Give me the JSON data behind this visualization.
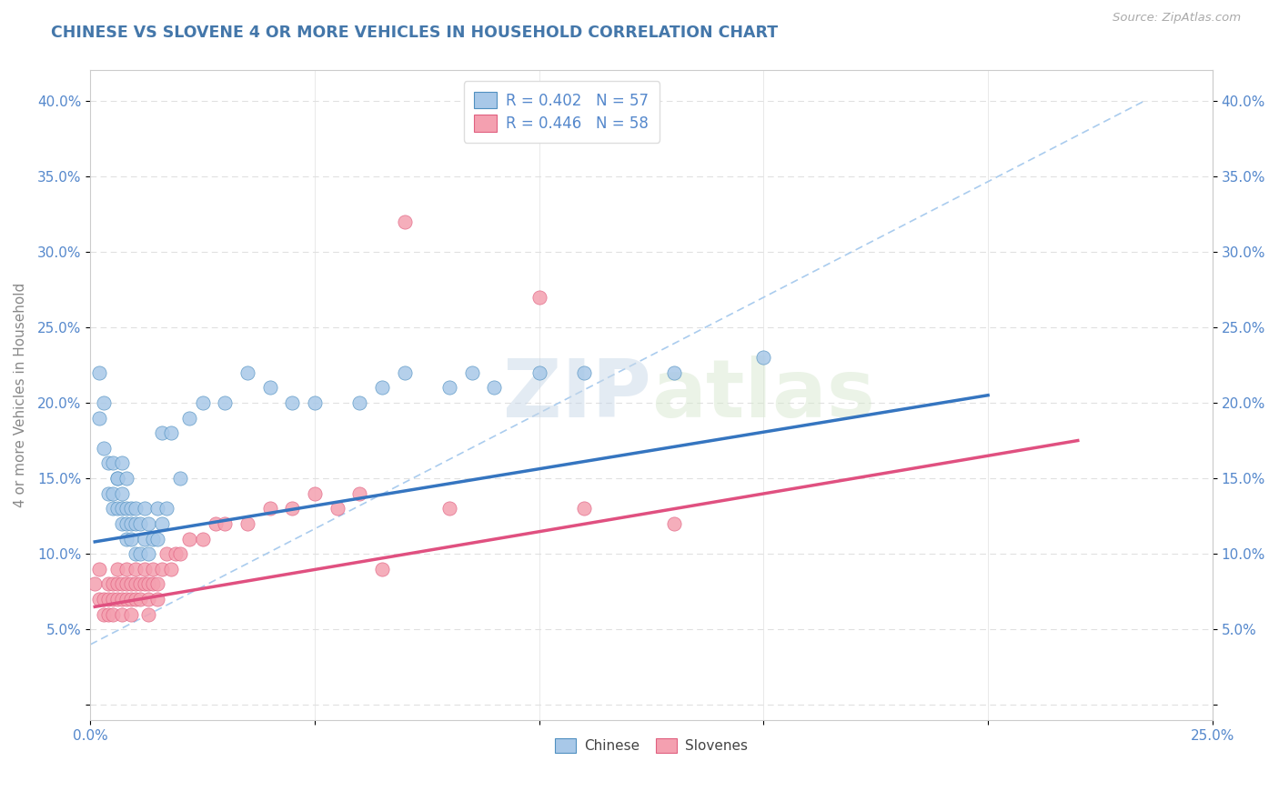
{
  "title": "CHINESE VS SLOVENE 4 OR MORE VEHICLES IN HOUSEHOLD CORRELATION CHART",
  "source_text": "Source: ZipAtlas.com",
  "ylabel": "4 or more Vehicles in Household",
  "xlim": [
    0.0,
    0.25
  ],
  "ylim": [
    -0.01,
    0.42
  ],
  "ytick_vals": [
    0.0,
    0.05,
    0.1,
    0.15,
    0.2,
    0.25,
    0.3,
    0.35,
    0.4
  ],
  "ytick_labels": [
    "",
    "5.0%",
    "10.0%",
    "15.0%",
    "20.0%",
    "25.0%",
    "30.0%",
    "35.0%",
    "40.0%"
  ],
  "xtick_vals": [
    0.0,
    0.05,
    0.1,
    0.15,
    0.2,
    0.25
  ],
  "xtick_labels": [
    "0.0%",
    "",
    "",
    "",
    "",
    "25.0%"
  ],
  "chinese_R": 0.402,
  "chinese_N": 57,
  "slovene_R": 0.446,
  "slovene_N": 58,
  "chinese_color": "#a8c8e8",
  "slovene_color": "#f4a0b0",
  "chinese_edge_color": "#5090c0",
  "slovene_edge_color": "#e06080",
  "chinese_line_color": "#3575c0",
  "slovene_line_color": "#e05080",
  "dashed_line_color": "#aaccee",
  "background_color": "#ffffff",
  "grid_color": "#e0e0e0",
  "title_color": "#4477aa",
  "tick_color": "#5588cc",
  "ylabel_color": "#888888",
  "source_color": "#aaaaaa",
  "watermark_color": "#ddeeff",
  "chinese_scatter": [
    [
      0.002,
      0.22
    ],
    [
      0.002,
      0.19
    ],
    [
      0.003,
      0.2
    ],
    [
      0.003,
      0.17
    ],
    [
      0.004,
      0.16
    ],
    [
      0.004,
      0.14
    ],
    [
      0.005,
      0.16
    ],
    [
      0.005,
      0.14
    ],
    [
      0.005,
      0.13
    ],
    [
      0.006,
      0.15
    ],
    [
      0.006,
      0.13
    ],
    [
      0.006,
      0.15
    ],
    [
      0.007,
      0.14
    ],
    [
      0.007,
      0.12
    ],
    [
      0.007,
      0.16
    ],
    [
      0.007,
      0.13
    ],
    [
      0.008,
      0.13
    ],
    [
      0.008,
      0.15
    ],
    [
      0.008,
      0.12
    ],
    [
      0.008,
      0.11
    ],
    [
      0.009,
      0.13
    ],
    [
      0.009,
      0.11
    ],
    [
      0.009,
      0.12
    ],
    [
      0.01,
      0.12
    ],
    [
      0.01,
      0.1
    ],
    [
      0.01,
      0.13
    ],
    [
      0.011,
      0.12
    ],
    [
      0.011,
      0.1
    ],
    [
      0.012,
      0.11
    ],
    [
      0.012,
      0.13
    ],
    [
      0.013,
      0.12
    ],
    [
      0.013,
      0.1
    ],
    [
      0.014,
      0.11
    ],
    [
      0.015,
      0.11
    ],
    [
      0.015,
      0.13
    ],
    [
      0.016,
      0.12
    ],
    [
      0.016,
      0.18
    ],
    [
      0.017,
      0.13
    ],
    [
      0.018,
      0.18
    ],
    [
      0.02,
      0.15
    ],
    [
      0.022,
      0.19
    ],
    [
      0.025,
      0.2
    ],
    [
      0.03,
      0.2
    ],
    [
      0.035,
      0.22
    ],
    [
      0.04,
      0.21
    ],
    [
      0.045,
      0.2
    ],
    [
      0.05,
      0.2
    ],
    [
      0.06,
      0.2
    ],
    [
      0.065,
      0.21
    ],
    [
      0.07,
      0.22
    ],
    [
      0.08,
      0.21
    ],
    [
      0.085,
      0.22
    ],
    [
      0.09,
      0.21
    ],
    [
      0.1,
      0.22
    ],
    [
      0.11,
      0.22
    ],
    [
      0.13,
      0.22
    ],
    [
      0.15,
      0.23
    ]
  ],
  "slovene_scatter": [
    [
      0.001,
      0.08
    ],
    [
      0.002,
      0.07
    ],
    [
      0.002,
      0.09
    ],
    [
      0.003,
      0.06
    ],
    [
      0.003,
      0.07
    ],
    [
      0.004,
      0.07
    ],
    [
      0.004,
      0.08
    ],
    [
      0.004,
      0.06
    ],
    [
      0.005,
      0.07
    ],
    [
      0.005,
      0.08
    ],
    [
      0.005,
      0.06
    ],
    [
      0.006,
      0.07
    ],
    [
      0.006,
      0.09
    ],
    [
      0.006,
      0.08
    ],
    [
      0.007,
      0.06
    ],
    [
      0.007,
      0.07
    ],
    [
      0.007,
      0.08
    ],
    [
      0.008,
      0.07
    ],
    [
      0.008,
      0.08
    ],
    [
      0.008,
      0.09
    ],
    [
      0.009,
      0.07
    ],
    [
      0.009,
      0.08
    ],
    [
      0.009,
      0.06
    ],
    [
      0.01,
      0.08
    ],
    [
      0.01,
      0.09
    ],
    [
      0.01,
      0.07
    ],
    [
      0.011,
      0.08
    ],
    [
      0.011,
      0.07
    ],
    [
      0.012,
      0.08
    ],
    [
      0.012,
      0.09
    ],
    [
      0.013,
      0.07
    ],
    [
      0.013,
      0.08
    ],
    [
      0.013,
      0.06
    ],
    [
      0.014,
      0.08
    ],
    [
      0.014,
      0.09
    ],
    [
      0.015,
      0.07
    ],
    [
      0.015,
      0.08
    ],
    [
      0.016,
      0.09
    ],
    [
      0.017,
      0.1
    ],
    [
      0.018,
      0.09
    ],
    [
      0.019,
      0.1
    ],
    [
      0.02,
      0.1
    ],
    [
      0.022,
      0.11
    ],
    [
      0.025,
      0.11
    ],
    [
      0.028,
      0.12
    ],
    [
      0.03,
      0.12
    ],
    [
      0.035,
      0.12
    ],
    [
      0.04,
      0.13
    ],
    [
      0.045,
      0.13
    ],
    [
      0.05,
      0.14
    ],
    [
      0.055,
      0.13
    ],
    [
      0.06,
      0.14
    ],
    [
      0.065,
      0.09
    ],
    [
      0.07,
      0.32
    ],
    [
      0.08,
      0.13
    ],
    [
      0.1,
      0.27
    ],
    [
      0.11,
      0.13
    ],
    [
      0.13,
      0.12
    ]
  ],
  "chinese_trendline": [
    0.001,
    0.2
  ],
  "chinese_trend_y": [
    0.108,
    0.205
  ],
  "slovene_trendline": [
    0.001,
    0.22
  ],
  "slovene_trend_y": [
    0.065,
    0.175
  ],
  "dashed_line_x": [
    0.0,
    0.235
  ],
  "dashed_line_y": [
    0.04,
    0.4
  ]
}
